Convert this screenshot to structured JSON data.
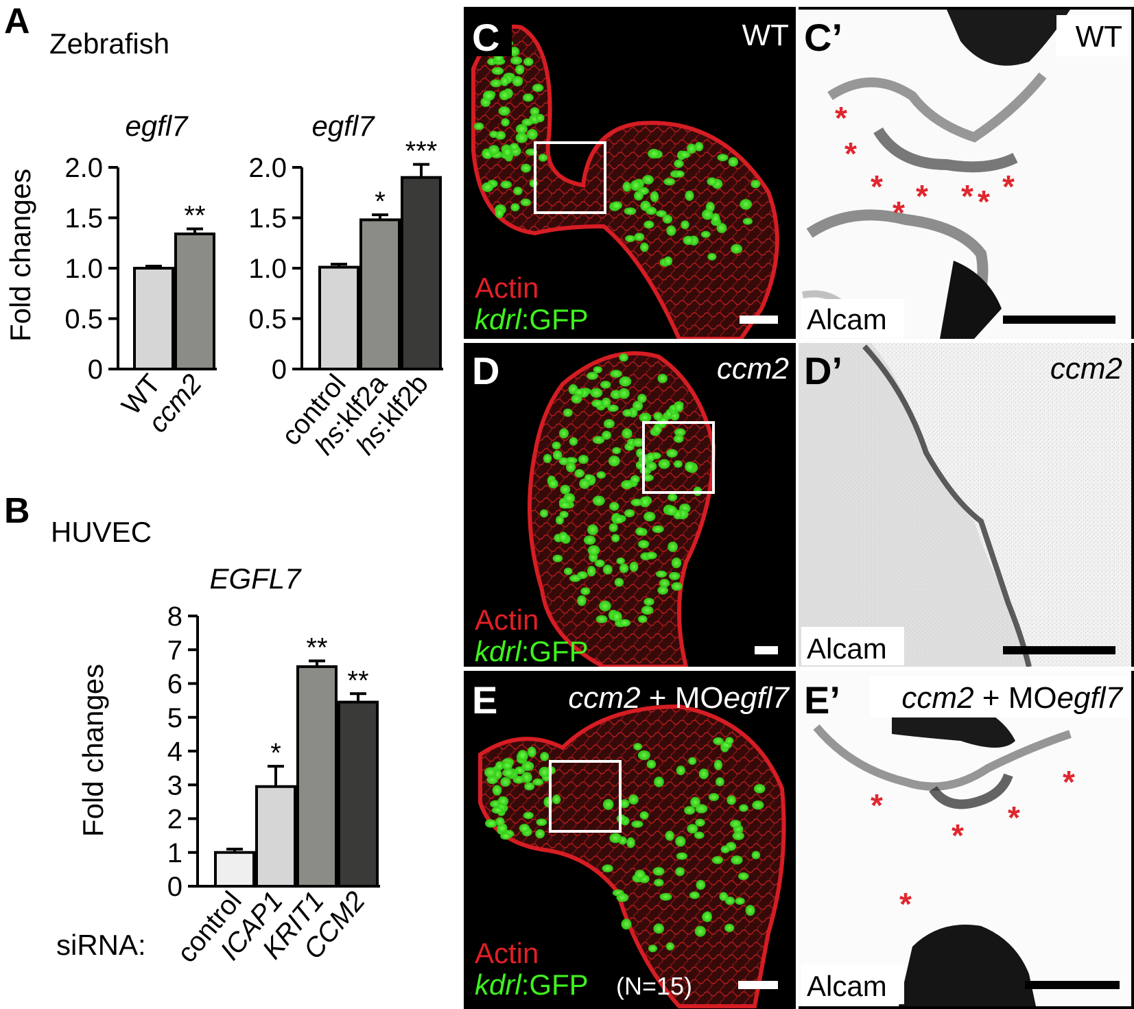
{
  "panelA": {
    "letter": "A",
    "title": "Zebrafish",
    "ylabel": "Fold changes",
    "chart1": {
      "title": "egfl7"
    },
    "chart2": {
      "title": "egfl7"
    }
  },
  "panelB": {
    "letter": "B",
    "title": "HUVEC",
    "chart_title": "EGFL7",
    "ylabel": "Fold changes",
    "siRNA_label": "siRNA:"
  },
  "chart_data": [
    {
      "type": "bar",
      "title": "egfl7",
      "ylabel": "Fold changes",
      "ylim": [
        0,
        2.0
      ],
      "yticks": [
        "0",
        "0.5",
        "1.0",
        "1.5",
        "2.0"
      ],
      "categories": [
        "WT",
        "ccm2"
      ],
      "values": [
        1.0,
        1.34
      ],
      "errors": [
        0.02,
        0.05
      ],
      "significance": [
        "",
        "**"
      ],
      "colors": [
        "#d6d6d6",
        "#8c8c86"
      ]
    },
    {
      "type": "bar",
      "title": "egfl7",
      "ylim": [
        0,
        2.0
      ],
      "yticks": [
        "0",
        "0.5",
        "1.0",
        "1.5",
        "2.0"
      ],
      "categories": [
        "control",
        "hs:klf2a",
        "hs:klf2b"
      ],
      "values": [
        1.01,
        1.48,
        1.9
      ],
      "errors": [
        0.03,
        0.05,
        0.13
      ],
      "significance": [
        "",
        "*",
        "***"
      ],
      "colors": [
        "#d6d6d6",
        "#8c8c86",
        "#3a3a38"
      ]
    },
    {
      "type": "bar",
      "title": "EGFL7",
      "ylabel": "Fold changes",
      "ylim": [
        0,
        8
      ],
      "yticks": [
        "0",
        "1",
        "2",
        "3",
        "4",
        "5",
        "6",
        "7",
        "8"
      ],
      "categories": [
        "control",
        "ICAP1",
        "KRIT1",
        "CCM2"
      ],
      "values": [
        1.0,
        2.95,
        6.5,
        5.45
      ],
      "errors": [
        0.1,
        0.6,
        0.17,
        0.25
      ],
      "significance": [
        "",
        "*",
        "**",
        "**"
      ],
      "colors": [
        "#efefef",
        "#d6d6d6",
        "#8c8c86",
        "#3a3a38"
      ]
    }
  ],
  "micrographs": {
    "C": {
      "letter": "C",
      "condition": "WT",
      "label1": "Actin",
      "label2a": "kdrl",
      "label2b": ":GFP"
    },
    "C2": {
      "letter": "C’",
      "condition": "WT",
      "stain": "Alcam"
    },
    "D": {
      "letter": "D",
      "condition": "ccm2",
      "label1": "Actin",
      "label2a": "kdrl",
      "label2b": ":GFP"
    },
    "D2": {
      "letter": "D’",
      "condition": "ccm2",
      "stain": "Alcam"
    },
    "E": {
      "letter": "E",
      "cond_a": "ccm2",
      "cond_b": " + MO",
      "cond_c": "egfl7",
      "label1": "Actin",
      "label2a": "kdrl",
      "label2b": ":GFP",
      "n": "(N=15)"
    },
    "E2": {
      "letter": "E’",
      "cond_a": "ccm2",
      "cond_b": " + MO",
      "cond_c": "egfl7",
      "stain": "Alcam"
    },
    "colors": {
      "actin": "#e21f26",
      "gfp": "#3ff21e",
      "asterisk": "#e0262e"
    }
  }
}
